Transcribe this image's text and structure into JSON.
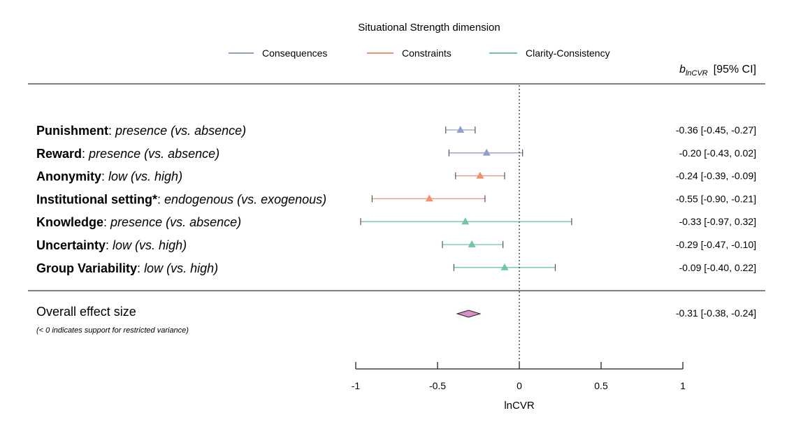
{
  "chart_data": {
    "type": "forest",
    "title": "Situational Strength dimension",
    "legend": [
      {
        "name": "Consequences",
        "color": "#8fa1ca"
      },
      {
        "name": "Constraints",
        "color": "#ef9270"
      },
      {
        "name": "Clarity-Consistency",
        "color": "#6fc7a6"
      }
    ],
    "header": {
      "b": "b",
      "sub": "lnCVR",
      "ci": "[95% CI]"
    },
    "rows": [
      {
        "bold": "Punishment",
        "rest": "presence (vs. absence)",
        "group": 0,
        "est": -0.36,
        "lo": -0.45,
        "hi": -0.27,
        "text": "-0.36 [-0.45, -0.27]"
      },
      {
        "bold": "Reward",
        "rest": "presence (vs. absence)",
        "group": 0,
        "est": -0.2,
        "lo": -0.43,
        "hi": 0.02,
        "text": "-0.20 [-0.43,  0.02]"
      },
      {
        "bold": "Anonymity",
        "rest": "low (vs. high)",
        "group": 1,
        "est": -0.24,
        "lo": -0.39,
        "hi": -0.09,
        "text": "-0.24 [-0.39, -0.09]"
      },
      {
        "bold": "Institutional setting*",
        "rest": "endogenous (vs. exogenous)",
        "group": 1,
        "est": -0.55,
        "lo": -0.9,
        "hi": -0.21,
        "text": "-0.55 [-0.90, -0.21]"
      },
      {
        "bold": "Knowledge",
        "rest": "presence (vs. absence)",
        "group": 2,
        "est": -0.33,
        "lo": -0.97,
        "hi": 0.32,
        "text": "-0.33 [-0.97,  0.32]"
      },
      {
        "bold": "Uncertainty",
        "rest": "low (vs. high)",
        "group": 2,
        "est": -0.29,
        "lo": -0.47,
        "hi": -0.1,
        "text": "-0.29 [-0.47, -0.10]"
      },
      {
        "bold": "Group Variability",
        "rest": "low (vs. high)",
        "group": 2,
        "est": -0.09,
        "lo": -0.4,
        "hi": 0.22,
        "text": "-0.09 [-0.40,  0.22]"
      }
    ],
    "overall": {
      "label": "Overall effect size",
      "note": "(< 0 indicates support for restricted variance)",
      "est": -0.31,
      "lo": -0.38,
      "hi": -0.24,
      "text": "-0.31 [-0.38, -0.24]",
      "color": "#d98fc4"
    },
    "xlim": [
      -1,
      1
    ],
    "ticks": [
      -1,
      -0.5,
      0,
      0.5,
      1
    ],
    "tick_labels": [
      "-1",
      "-0.5",
      "0",
      "0.5",
      "1"
    ],
    "xlabel": "lnCVR",
    "reference_line": 0
  }
}
